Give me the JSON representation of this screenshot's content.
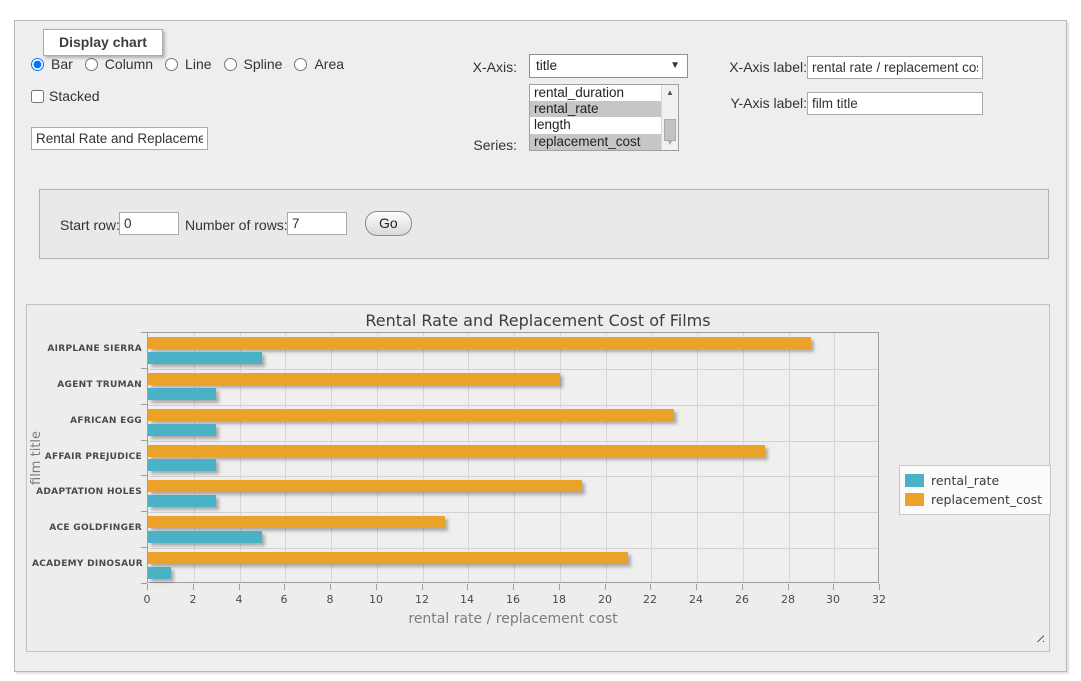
{
  "form": {
    "legend": "Display chart",
    "chart_type_options": [
      "Bar",
      "Column",
      "Line",
      "Spline",
      "Area"
    ],
    "selected_chart_type": "Bar",
    "stacked_label": "Stacked",
    "chart_title_value": "Rental Rate and Replacement Cost of Films",
    "x_axis": {
      "label": "X-Axis:",
      "selected": "title"
    },
    "series": {
      "label": "Series:",
      "options": [
        "rental_duration",
        "rental_rate",
        "length",
        "replacement_cost"
      ],
      "selected": [
        "rental_rate",
        "replacement_cost"
      ]
    },
    "x_axis_label": {
      "label": "X-Axis label:",
      "value": "rental rate / replacement cost"
    },
    "y_axis_label": {
      "label": "Y-Axis label:",
      "value": "film title"
    }
  },
  "pager": {
    "start_row_label": "Start row:",
    "start_row_value": "0",
    "number_of_rows_label": "Number of rows:",
    "number_of_rows_value": "7",
    "go_label": "Go"
  },
  "chart_data": {
    "type": "bar",
    "orientation": "horizontal",
    "title": "Rental Rate and Replacement Cost of Films",
    "xlabel": "rental rate / replacement cost",
    "ylabel": "film title",
    "categories": [
      "AIRPLANE SIERRA",
      "AGENT TRUMAN",
      "AFRICAN EGG",
      "AFFAIR PREJUDICE",
      "ADAPTATION HOLES",
      "ACE GOLDFINGER",
      "ACADEMY DINOSAUR"
    ],
    "series": [
      {
        "name": "rental_rate",
        "color": "#4bb2c5",
        "values": [
          4.99,
          2.99,
          2.99,
          2.99,
          2.99,
          4.99,
          0.99
        ]
      },
      {
        "name": "replacement_cost",
        "color": "#eaa228",
        "values": [
          28.99,
          17.99,
          22.99,
          26.99,
          18.99,
          12.99,
          20.99
        ]
      }
    ],
    "xlim": [
      0,
      32
    ],
    "xtick_step": 2,
    "grid": true,
    "legend_position": "right"
  }
}
